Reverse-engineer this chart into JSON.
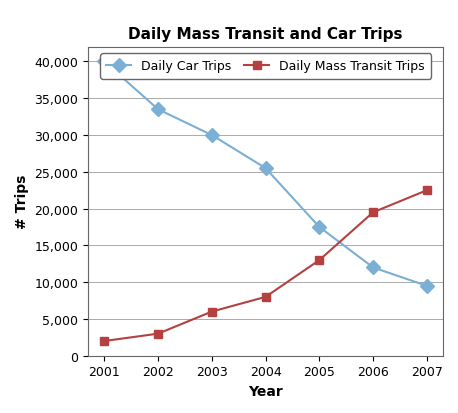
{
  "title": "Daily Mass Transit and Car Trips",
  "xlabel": "Year",
  "ylabel": "# Trips",
  "years": [
    2001,
    2002,
    2003,
    2004,
    2005,
    2006,
    2007
  ],
  "car_trips": [
    40000,
    33500,
    30000,
    25500,
    17500,
    12000,
    9500
  ],
  "transit_trips": [
    2000,
    3000,
    6000,
    8000,
    13000,
    19500,
    22500
  ],
  "car_color": "#7bafd4",
  "transit_color": "#b54040",
  "car_marker": "D",
  "transit_marker": "s",
  "car_label": "Daily Car Trips",
  "transit_label": "Daily Mass Transit Trips",
  "ylim": [
    0,
    42000
  ],
  "yticks": [
    0,
    5000,
    10000,
    15000,
    20000,
    25000,
    30000,
    35000,
    40000
  ],
  "background_color": "#ffffff",
  "legend_fontsize": 9,
  "title_fontsize": 11,
  "axis_label_fontsize": 10,
  "tick_fontsize": 9,
  "grid_color": "#aaaaaa",
  "spine_color": "#666666"
}
